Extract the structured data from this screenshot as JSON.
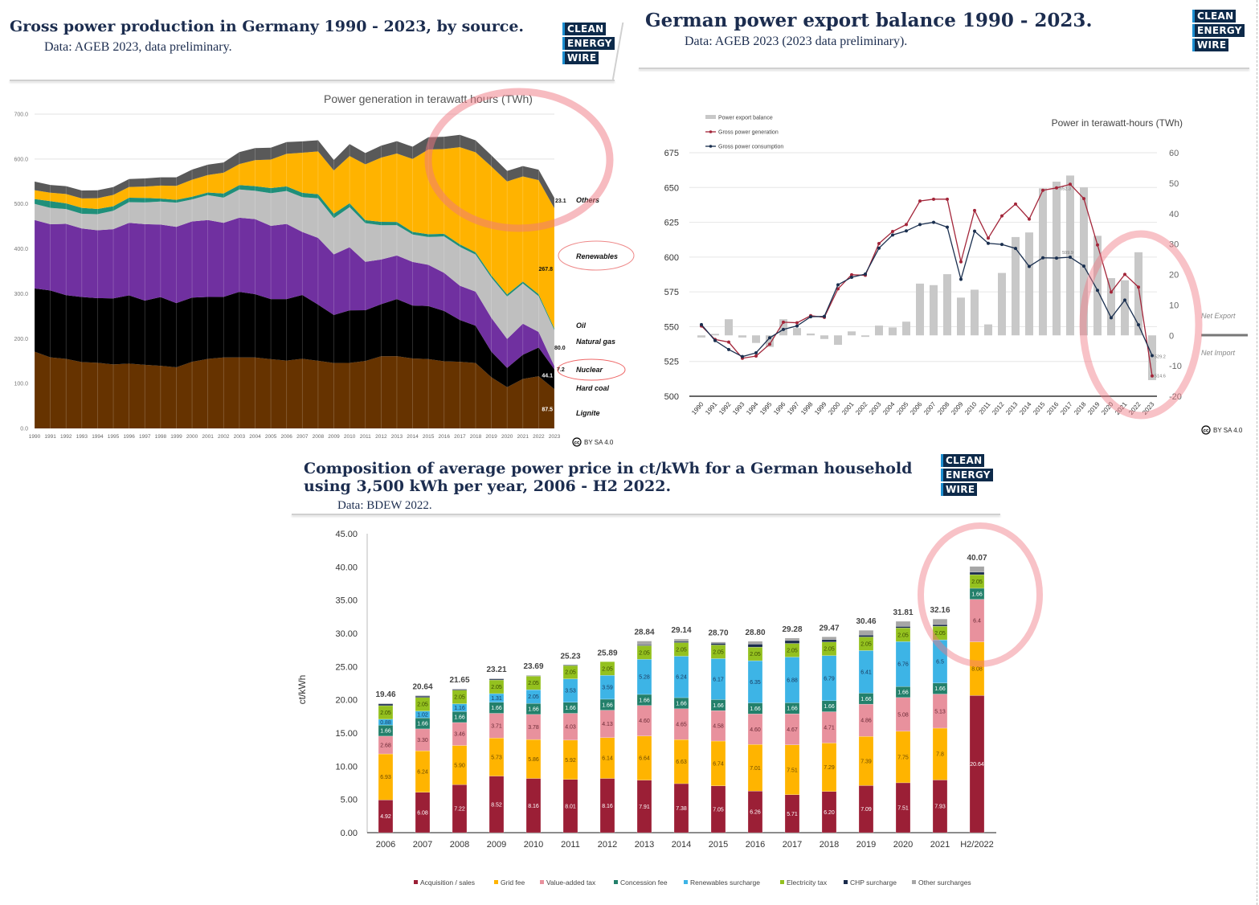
{
  "panels": {
    "generation": {
      "title": "Gross power production in Germany 1990 - 2023, by source.",
      "subtitle": "Data: AGEB 2023, data preliminary.",
      "logo": [
        "CLEAN",
        "ENERGY",
        "WIRE"
      ],
      "license": "BY SA 4.0"
    },
    "export": {
      "title": "German power export balance 1990 - 2023.",
      "subtitle": "Data: AGEB 2023 (2023 data preliminary).",
      "logo": [
        "CLEAN",
        "ENERGY",
        "WIRE"
      ],
      "license": "BY SA 4.0"
    },
    "price": {
      "title_line1": "Composition of average power price in ct/kWh for a German household",
      "title_line2": "using 3,500 kWh per year, 2006 - H2 2022.",
      "subtitle": "Data: BDEW 2022.",
      "logo": [
        "CLEAN",
        "ENERGY",
        "WIRE"
      ]
    }
  },
  "chart_data": [
    {
      "type": "area",
      "title": "Power generation in terawatt hours (TWh)",
      "xlabel": "",
      "ylabel": "",
      "ylim": [
        0,
        700
      ],
      "yticks": [
        "0.0",
        "100.0",
        "200.0",
        "300.0",
        "400.0",
        "500.0",
        "600.0",
        "700.0"
      ],
      "years": [
        1990,
        1991,
        1992,
        1993,
        1994,
        1995,
        1996,
        1997,
        1998,
        1999,
        2000,
        2001,
        2002,
        2003,
        2004,
        2005,
        2006,
        2007,
        2008,
        2009,
        2010,
        2011,
        2012,
        2013,
        2014,
        2015,
        2016,
        2017,
        2018,
        2019,
        2020,
        2021,
        2022,
        2023
      ],
      "series": [
        {
          "name": "Lignite",
          "color": "#663300",
          "values": [
            170.9,
            158.3,
            154.8,
            147.6,
            146.1,
            142.6,
            144.3,
            141.7,
            139.4,
            136.0,
            148.3,
            154.8,
            158.0,
            158.2,
            158.0,
            154.1,
            151.1,
            155.1,
            150.6,
            145.6,
            145.9,
            150.1,
            160.7,
            160.9,
            155.8,
            154.5,
            149.5,
            148.4,
            145.6,
            114.0,
            91.7,
            110.1,
            116.1,
            87.5
          ]
        },
        {
          "name": "Hard coal",
          "color": "#000000",
          "values": [
            140.8,
            149,
            142,
            145,
            144,
            147,
            152,
            143,
            153,
            143,
            143,
            138,
            135,
            146,
            141,
            134,
            137,
            142,
            125,
            107,
            117,
            113,
            116,
            127,
            118,
            118,
            112,
            93,
            83,
            57,
            43,
            54,
            64,
            44.1
          ]
        },
        {
          "name": "Nuclear",
          "color": "#7030a0",
          "values": [
            152.5,
            147.4,
            158.8,
            152.8,
            151.2,
            154.1,
            161.6,
            170.3,
            161.6,
            170.0,
            169.6,
            171.3,
            164.8,
            165.1,
            167.1,
            163.0,
            167.3,
            140.5,
            148.8,
            134.9,
            140.6,
            108.0,
            99.5,
            97.3,
            97.1,
            91.8,
            84.9,
            76.3,
            76.0,
            75.1,
            64.4,
            69.1,
            34.7,
            7.2
          ]
        },
        {
          "name": "Natural gas",
          "color": "#bfbfbf",
          "values": [
            35.9,
            36.6,
            33.0,
            32.6,
            35.9,
            41.1,
            46.1,
            48.2,
            51.4,
            53.8,
            49.2,
            55.5,
            56.3,
            62.9,
            63.2,
            72.7,
            73.3,
            77.5,
            88.1,
            80.9,
            89.3,
            86.1,
            76.4,
            67.5,
            61.1,
            62.0,
            81.3,
            86.7,
            82.5,
            89.9,
            94.7,
            89.4,
            79.8,
            80.0
          ]
        },
        {
          "name": "Oil",
          "color": "#1f8f7a",
          "values": [
            10.8,
            14.8,
            12.7,
            13.3,
            11.6,
            10.1,
            9.7,
            10.1,
            6.6,
            6.2,
            5.9,
            5.8,
            9.2,
            9.9,
            10.3,
            11.6,
            10.5,
            9.6,
            9.2,
            10.1,
            8.7,
            6.8,
            7.6,
            7.2,
            5.7,
            6.2,
            5.8,
            5.6,
            5.2,
            4.8,
            4.7,
            4.6,
            4.4,
            3.7
          ]
        },
        {
          "name": "Renewables",
          "color": "#ffb300",
          "values": [
            19.7,
            19.0,
            20.9,
            20.9,
            24.0,
            25.1,
            24.1,
            25.4,
            29.0,
            31.3,
            37.9,
            39.0,
            46.3,
            46.6,
            57.9,
            63.4,
            72.5,
            89.4,
            95.3,
            95.9,
            105.2,
            124.0,
            143.0,
            152.3,
            162.5,
            188.8,
            188.9,
            216.3,
            222.7,
            242.5,
            251.6,
            234.0,
            254.0,
            267.8
          ]
        },
        {
          "name": "Others",
          "color": "#595959",
          "values": [
            19.3,
            17.1,
            17.4,
            17.8,
            17.5,
            17.6,
            17.6,
            18.0,
            18.3,
            19.0,
            22.6,
            23.0,
            22.7,
            26.6,
            26.8,
            26.5,
            26.1,
            25.2,
            24.9,
            23.3,
            26.6,
            25.5,
            26.6,
            27.6,
            27.2,
            27.2,
            27.3,
            27.6,
            26.5,
            25.0,
            23.4,
            23.0,
            23.3,
            23.1
          ]
        }
      ],
      "end_labels": [
        {
          "series": 0,
          "text": "87.5"
        },
        {
          "series": 1,
          "text": "44.1"
        },
        {
          "series": 2,
          "text": "7.2"
        },
        {
          "series": 3,
          "text": "80.0"
        },
        {
          "series": 5,
          "text": "267.8"
        },
        {
          "series": 6,
          "text": "23.1"
        }
      ],
      "highlighted": [
        "Others",
        "Renewables",
        "Nuclear"
      ]
    },
    {
      "type": "line",
      "title": "Power in terawatt-hours (TWh)",
      "ylim": [
        500,
        675
      ],
      "yticks": [
        "500",
        "525",
        "550",
        "575",
        "600",
        "625",
        "650",
        "675"
      ],
      "y2lim": [
        -20,
        60
      ],
      "y2ticks": [
        "-20",
        "-10",
        "0",
        "10",
        "20",
        "30",
        "40",
        "50",
        "60"
      ],
      "years": [
        1990,
        1991,
        1992,
        1993,
        1994,
        1995,
        1996,
        1997,
        1998,
        1999,
        2000,
        2001,
        2002,
        2003,
        2004,
        2005,
        2006,
        2007,
        2008,
        2009,
        2010,
        2011,
        2012,
        2013,
        2014,
        2015,
        2016,
        2017,
        2018,
        2019,
        2020,
        2021,
        2022,
        2023
      ],
      "series": [
        {
          "name": "Power export balance",
          "type": "bar",
          "axis": "right",
          "color": "#c8c8c8",
          "values": [
            -0.7,
            0.5,
            5.3,
            -0.7,
            -2.5,
            -3.8,
            5.3,
            2.4,
            0.6,
            -1.2,
            -3.1,
            1.3,
            -0.5,
            3.2,
            2.6,
            4.5,
            17.0,
            16.5,
            20.1,
            12.4,
            15.0,
            3.6,
            20.5,
            32.3,
            33.8,
            48.3,
            50.5,
            52.5,
            48.6,
            32.7,
            18.8,
            18.1,
            27.3,
            -14.7
          ]
        },
        {
          "name": "Gross power generation",
          "type": "line",
          "axis": "left",
          "color": "#a3263a",
          "values": [
            550.5,
            540.8,
            538.9,
            527.3,
            528.9,
            537.4,
            553.2,
            552.8,
            557.9,
            556.7,
            577.2,
            587.3,
            586.9,
            609.7,
            618.4,
            623.4,
            640.3,
            641.6,
            641.6,
            596.6,
            633.5,
            613.6,
            629.6,
            638.1,
            627.3,
            648.0,
            649.7,
            652.3,
            642.0,
            608.7,
            574.9,
            587.6,
            578.4,
            514.6
          ]
        },
        {
          "name": "Gross power consumption",
          "type": "line",
          "axis": "left",
          "color": "#1a2f4f",
          "values": [
            551.5,
            540.0,
            533.6,
            528.5,
            531.2,
            542.0,
            548.0,
            550.5,
            557.1,
            557.4,
            580.1,
            585.5,
            587.8,
            606.4,
            615.9,
            618.8,
            623.4,
            625.0,
            621.5,
            584.0,
            618.6,
            609.9,
            609.1,
            606.2,
            593.3,
            599.5,
            599.3,
            599.9,
            593.5,
            576.1,
            556.4,
            569.1,
            551.3,
            529.2
          ]
        }
      ],
      "point_labels": [
        {
          "series": 1,
          "year": 2017,
          "text": "652.3"
        },
        {
          "series": 2,
          "year": 2017,
          "text": "599.9"
        },
        {
          "series": 2,
          "year": 2023,
          "text": "529.2"
        },
        {
          "series": 1,
          "year": 2023,
          "text": "514.6"
        }
      ],
      "annotations": {
        "net_export": "Net Export",
        "net_import": "Net Import"
      },
      "legend": "top-left"
    },
    {
      "type": "bar",
      "stacked": true,
      "title": "",
      "xlabel": "",
      "ylabel": "ct/kWh",
      "ylim": [
        0,
        45
      ],
      "yticks": [
        "0.00",
        "5.00",
        "10.00",
        "15.00",
        "20.00",
        "25.00",
        "30.00",
        "35.00",
        "40.00",
        "45.00"
      ],
      "categories": [
        "2006",
        "2007",
        "2008",
        "2009",
        "2010",
        "2011",
        "2012",
        "2013",
        "2014",
        "2015",
        "2016",
        "2017",
        "2018",
        "2019",
        "2020",
        "2021",
        "H2/2022"
      ],
      "totals": [
        "19.46",
        "20.64",
        "21.65",
        "23.21",
        "23.69",
        "25.23",
        "25.89",
        "28.84",
        "29.14",
        "28.70",
        "28.80",
        "29.28",
        "29.47",
        "30.46",
        "31.81",
        "32.16",
        "40.07"
      ],
      "series": [
        {
          "name": "Acquisition / sales",
          "color": "#9b1f36",
          "label_color": "#ffffff",
          "values": [
            "4.92",
            "6.08",
            "7.22",
            "8.52",
            "8.16",
            "8.01",
            "8.16",
            "7.91",
            "7.38",
            "7.05",
            "6.26",
            "5.71",
            "6.20",
            "7.09",
            "7.51",
            "7.93",
            "20.64"
          ]
        },
        {
          "name": "Grid fee",
          "color": "#ffb400",
          "label_color": "#6b4a00",
          "values": [
            "6.93",
            "6.24",
            "5.90",
            "5.73",
            "5.86",
            "5.92",
            "6.14",
            "6.64",
            "6.63",
            "6.74",
            "7.01",
            "7.51",
            "7.29",
            "7.39",
            "7.75",
            "7.8",
            "8.08"
          ]
        },
        {
          "name": "Value-added tax",
          "color": "#e8919d",
          "label_color": "#6b2a36",
          "values": [
            "2.68",
            "3.30",
            "3.46",
            "3.71",
            "3.78",
            "4.03",
            "4.13",
            "4.60",
            "4.65",
            "4.58",
            "4.60",
            "4.67",
            "4.71",
            "4.86",
            "5.08",
            "5.13",
            "6.4"
          ]
        },
        {
          "name": "Concession fee",
          "color": "#23806b",
          "label_color": "#ffffff",
          "values": [
            "1.66",
            "1.66",
            "1.66",
            "1.66",
            "1.66",
            "1.66",
            "1.66",
            "1.66",
            "1.66",
            "1.66",
            "1.66",
            "1.66",
            "1.66",
            "1.66",
            "1.66",
            "1.66",
            "1.66"
          ]
        },
        {
          "name": "Renewables surcharge",
          "color": "#3db4e6",
          "label_color": "#1a3a60",
          "values": [
            "0.88",
            "1.02",
            "1.16",
            "1.31",
            "2.05",
            "3.53",
            "3.59",
            "5.28",
            "6.24",
            "6.17",
            "6.35",
            "6.88",
            "6.79",
            "6.41",
            "6.76",
            "6.5",
            null
          ]
        },
        {
          "name": "Electricity tax",
          "color": "#94c11f",
          "label_color": "#3a4a00",
          "values": [
            "2.05",
            "2.05",
            "2.05",
            "2.05",
            "2.05",
            "2.05",
            "2.05",
            "2.05",
            "2.05",
            "2.05",
            "2.05",
            "2.05",
            "2.05",
            "2.05",
            "2.05",
            "2.05",
            "2.05"
          ]
        },
        {
          "name": "CHP surcharge",
          "color": "#1a2b4c",
          "values": [
            "0.30",
            "0.26",
            "0.18",
            "0.20",
            "0.12",
            "0.03",
            "0.00",
            "0.13",
            "0.18",
            "0.25",
            "0.45",
            "0.44",
            "0.35",
            "0.28",
            "0.23",
            "0.25",
            "0.38"
          ]
        },
        {
          "name": "Other surcharges",
          "color": "#a6a6a6",
          "values": [
            "0.04",
            "0.03",
            "0.02",
            "0.03",
            "0.01",
            "0.00",
            "0.00",
            "0.57",
            "0.35",
            "0.20",
            "0.42",
            "0.36",
            "0.42",
            "0.72",
            "0.77",
            "0.84",
            "0.86"
          ]
        }
      ],
      "labeled_series": [
        0,
        1,
        2,
        3,
        4,
        5
      ],
      "legend": "bottom"
    }
  ]
}
